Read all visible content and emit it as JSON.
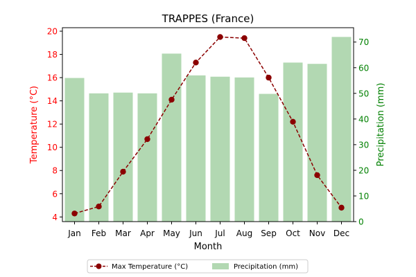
{
  "chart_data": {
    "type": "bar+line",
    "title": "TRAPPES (France)",
    "xlabel": "Month",
    "categories": [
      "Jan",
      "Feb",
      "Mar",
      "Apr",
      "May",
      "Jun",
      "Jul",
      "Aug",
      "Sep",
      "Oct",
      "Nov",
      "Dec"
    ],
    "grid": false,
    "legend_position": "bottom-center",
    "left_axis": {
      "label": "Temperature (°C)",
      "ylim": [
        3.6,
        20.3
      ],
      "ticks": [
        "4",
        "6",
        "8",
        "10",
        "12",
        "14",
        "16",
        "18",
        "20"
      ],
      "color": "#ff0000"
    },
    "right_axis": {
      "label": "Precipitation (mm)",
      "ylim": [
        0,
        75.6
      ],
      "ticks": [
        "0",
        "10",
        "20",
        "30",
        "40",
        "50",
        "60",
        "70"
      ],
      "color": "#008000"
    },
    "series": [
      {
        "name": "Max Temperature (°C)",
        "kind": "line",
        "axis": "left",
        "color": "#8b0000",
        "values": [
          4.3,
          4.9,
          7.9,
          10.7,
          14.1,
          17.3,
          19.5,
          19.4,
          16.0,
          12.2,
          7.6,
          4.8
        ]
      },
      {
        "name": "Precipitation (mm)",
        "kind": "bar",
        "axis": "right",
        "color": "#b2d8b2",
        "values": [
          56,
          50,
          50.3,
          50,
          65.5,
          57,
          56.5,
          56.2,
          49.8,
          62,
          61.5,
          72
        ]
      }
    ]
  }
}
